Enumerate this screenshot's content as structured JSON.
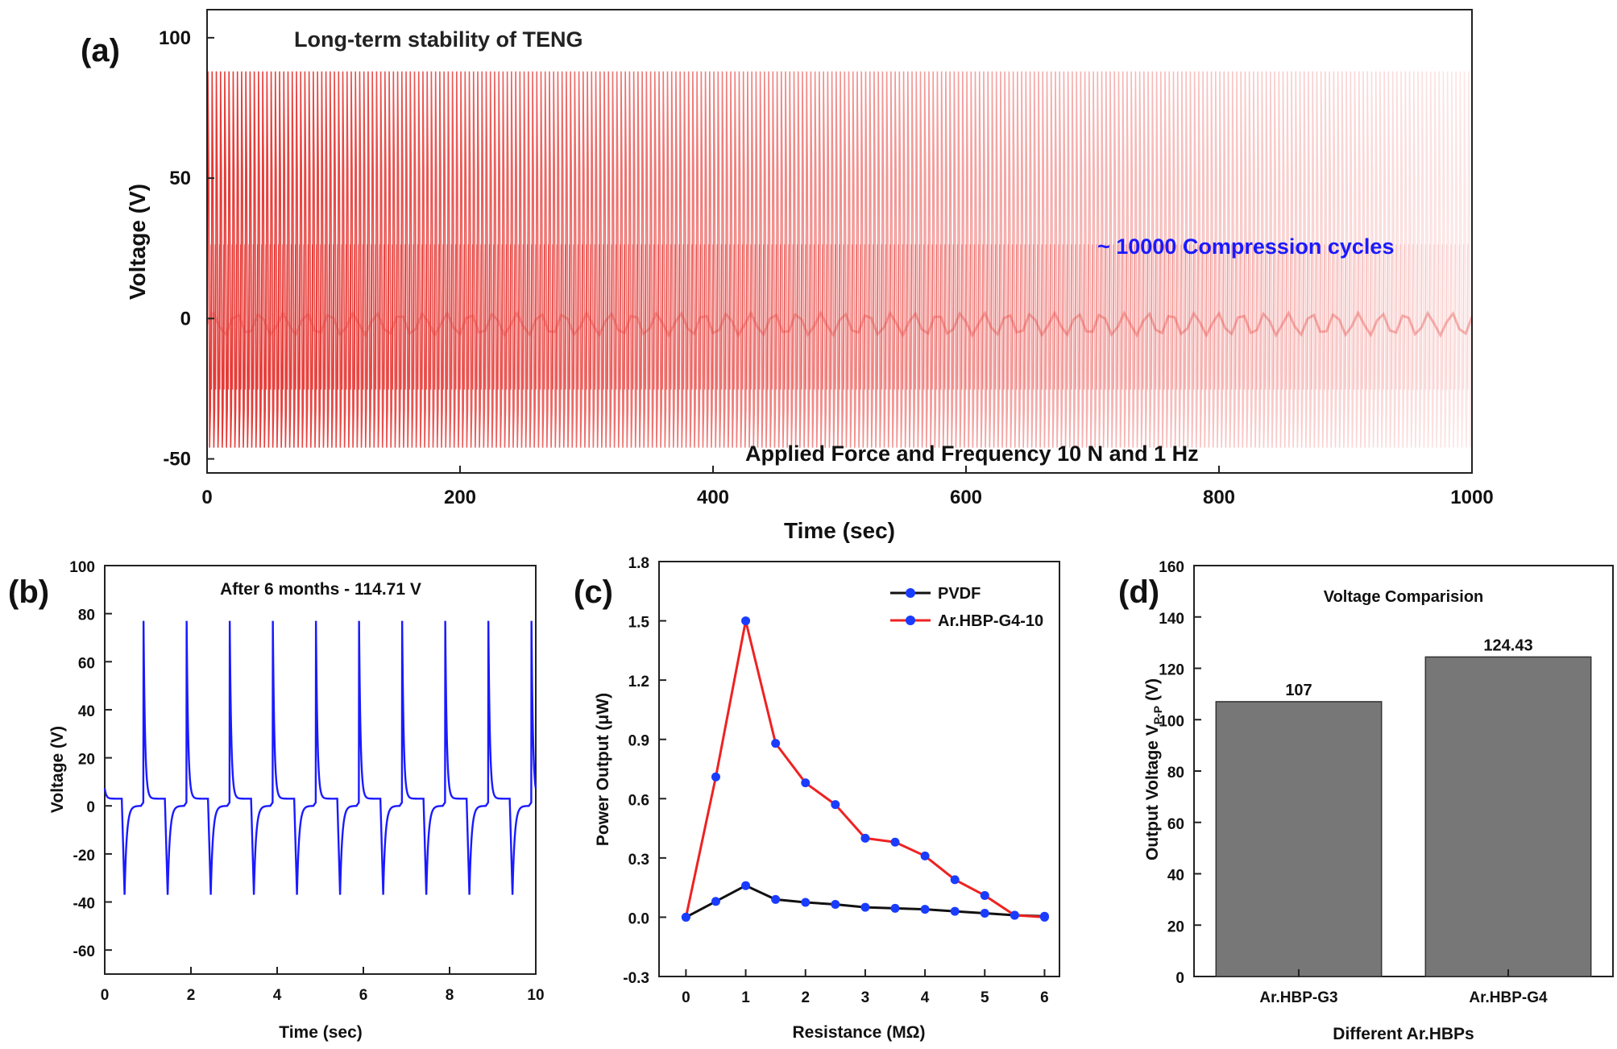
{
  "colors": {
    "teng_signal": "#e53935",
    "signal_b": "#1a1aff",
    "pvdf": "#111111",
    "hbp": "#ee2222",
    "marker": "#1a3cff",
    "bar": "#777777",
    "annotation_blue": "#1a1aff"
  },
  "chart_data": [
    {
      "panel": "(a)",
      "type": "line",
      "title": "Long-term stability of TENG",
      "xlabel": "Time (sec)",
      "ylabel": "Voltage (V)",
      "xlim": [
        0,
        1000
      ],
      "ylim": [
        -55,
        110
      ],
      "xticks": [
        "0",
        "200",
        "400",
        "600",
        "800",
        "1000"
      ],
      "yticks": [
        "-50",
        "0",
        "50",
        "100"
      ],
      "signal": {
        "frequency_hz": 1,
        "max_v": 88,
        "min_v": -46,
        "fade_start": 1.0,
        "fade_end": 0.12
      },
      "annotations": [
        "~ 10000 Compression cycles",
        "Applied Force and Frequency 10 N and 1 Hz"
      ]
    },
    {
      "panel": "(b)",
      "type": "line",
      "title": "After 6 months - 114.71 V",
      "xlabel": "Time (sec)",
      "ylabel": "Voltage (V)",
      "xlim": [
        0,
        10
      ],
      "ylim": [
        -70,
        100
      ],
      "xticks": [
        "0",
        "2",
        "4",
        "6",
        "8",
        "10"
      ],
      "yticks": [
        "-60",
        "-40",
        "-20",
        "0",
        "20",
        "40",
        "60",
        "80",
        "100"
      ],
      "signal": {
        "frequency_hz": 1,
        "max_v": 77,
        "min_v": -37,
        "first_peak_s": 0.9
      }
    },
    {
      "panel": "(c)",
      "type": "line",
      "title": "",
      "xlabel": "Resistance (MΩ)",
      "ylabel": "Power Output (μW)",
      "xlim": [
        -0.45,
        6.25
      ],
      "ylim": [
        -0.3,
        1.8
      ],
      "xticks": [
        "0",
        "1",
        "2",
        "3",
        "4",
        "5",
        "6"
      ],
      "yticks": [
        "-0.3",
        "0.0",
        "0.3",
        "0.6",
        "0.9",
        "1.2",
        "1.5",
        "1.8"
      ],
      "legend_position": "top-right",
      "x": [
        0,
        0.5,
        1,
        1.5,
        2,
        2.5,
        3,
        3.5,
        4,
        4.5,
        5,
        5.5,
        6
      ],
      "series": [
        {
          "name": "PVDF",
          "values": [
            0.0,
            0.08,
            0.16,
            0.09,
            0.075,
            0.065,
            0.05,
            0.045,
            0.04,
            0.03,
            0.02,
            0.01,
            0.005
          ]
        },
        {
          "name": "Ar.HBP-G4-10",
          "values": [
            0.0,
            0.71,
            1.5,
            0.88,
            0.68,
            0.57,
            0.4,
            0.38,
            0.31,
            0.19,
            0.11,
            0.01,
            0.0
          ]
        }
      ]
    },
    {
      "panel": "(d)",
      "type": "bar",
      "title": "Voltage Comparision",
      "xlabel": "Different Ar.HBPs",
      "ylabel": "Output Voltage V",
      "ylabel_subscript": "P-P",
      "ylabel_unit": " (V)",
      "ylim": [
        0,
        160
      ],
      "yticks": [
        "0",
        "20",
        "40",
        "60",
        "80",
        "100",
        "120",
        "140",
        "160"
      ],
      "categories": [
        "Ar.HBP-G3",
        "Ar.HBP-G4"
      ],
      "values": [
        107,
        124.43
      ],
      "value_labels": [
        "107",
        "124.43"
      ]
    }
  ]
}
